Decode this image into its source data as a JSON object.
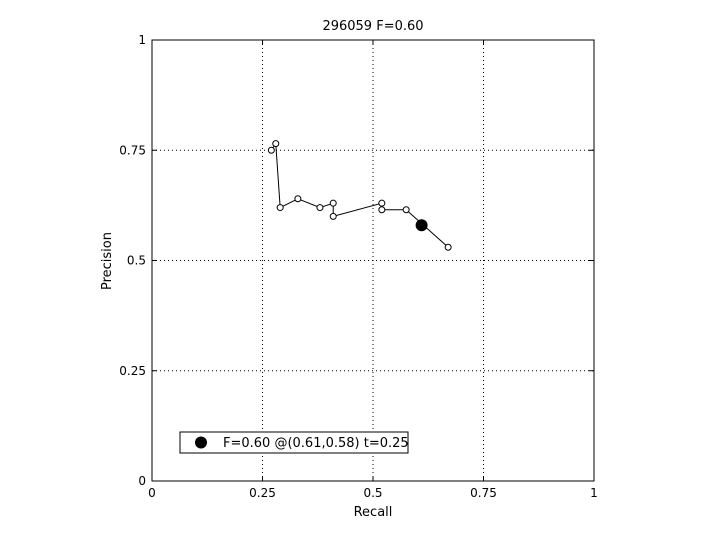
{
  "chart_data": {
    "type": "line",
    "title": "296059 F=0.60",
    "xlabel": "Recall",
    "ylabel": "Precision",
    "xlim": [
      0,
      1
    ],
    "ylim": [
      0,
      1
    ],
    "xticks": [
      0,
      0.25,
      0.5,
      0.75,
      1
    ],
    "yticks": [
      0,
      0.25,
      0.5,
      0.75,
      1
    ],
    "xtick_labels": [
      "0",
      "0.25",
      "0.5",
      "0.75",
      "1"
    ],
    "ytick_labels": [
      "0",
      "0.25",
      "0.5",
      "0.75",
      "1"
    ],
    "grid": true,
    "series": [
      {
        "marker": "open-circle",
        "points": [
          {
            "x": 0.27,
            "y": 0.75
          },
          {
            "x": 0.28,
            "y": 0.765
          },
          {
            "x": 0.29,
            "y": 0.62
          },
          {
            "x": 0.33,
            "y": 0.64
          },
          {
            "x": 0.38,
            "y": 0.62
          },
          {
            "x": 0.41,
            "y": 0.63
          },
          {
            "x": 0.41,
            "y": 0.6
          },
          {
            "x": 0.52,
            "y": 0.63
          },
          {
            "x": 0.52,
            "y": 0.615
          },
          {
            "x": 0.575,
            "y": 0.615
          },
          {
            "x": 0.67,
            "y": 0.53
          }
        ]
      }
    ],
    "highlight_point": {
      "x": 0.61,
      "y": 0.58,
      "marker": "filled-circle"
    },
    "legend": {
      "position": "bottom-left",
      "entries": [
        {
          "label": "F=0.60 @(0.61,0.58) t=0.25",
          "marker": "filled-circle"
        }
      ]
    }
  }
}
